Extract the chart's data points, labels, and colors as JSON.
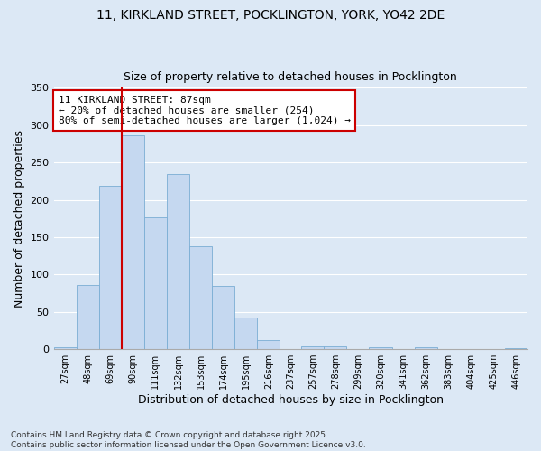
{
  "title_line1": "11, KIRKLAND STREET, POCKLINGTON, YORK, YO42 2DE",
  "title_line2": "Size of property relative to detached houses in Pocklington",
  "xlabel": "Distribution of detached houses by size in Pocklington",
  "ylabel": "Number of detached properties",
  "bar_color": "#c5d8f0",
  "bar_edge_color": "#7aadd4",
  "background_color": "#dce8f5",
  "grid_color": "#ffffff",
  "vline_x": 90,
  "vline_color": "#cc0000",
  "annotation_text": "11 KIRKLAND STREET: 87sqm\n← 20% of detached houses are smaller (254)\n80% of semi-detached houses are larger (1,024) →",
  "annotation_box_color": "white",
  "annotation_edge_color": "#cc0000",
  "categories": [
    "27sqm",
    "48sqm",
    "69sqm",
    "90sqm",
    "111sqm",
    "132sqm",
    "153sqm",
    "174sqm",
    "195sqm",
    "216sqm",
    "237sqm",
    "257sqm",
    "278sqm",
    "299sqm",
    "320sqm",
    "341sqm",
    "362sqm",
    "383sqm",
    "404sqm",
    "425sqm",
    "446sqm"
  ],
  "bin_edges": [
    27,
    48,
    69,
    90,
    111,
    132,
    153,
    174,
    195,
    216,
    237,
    257,
    278,
    299,
    320,
    341,
    362,
    383,
    404,
    425,
    446,
    467
  ],
  "values": [
    2,
    86,
    219,
    286,
    177,
    234,
    138,
    85,
    42,
    12,
    0,
    4,
    4,
    0,
    2,
    0,
    2,
    0,
    0,
    0,
    1
  ],
  "ylim": [
    0,
    350
  ],
  "yticks": [
    0,
    50,
    100,
    150,
    200,
    250,
    300,
    350
  ],
  "footnote": "Contains HM Land Registry data © Crown copyright and database right 2025.\nContains public sector information licensed under the Open Government Licence v3.0."
}
